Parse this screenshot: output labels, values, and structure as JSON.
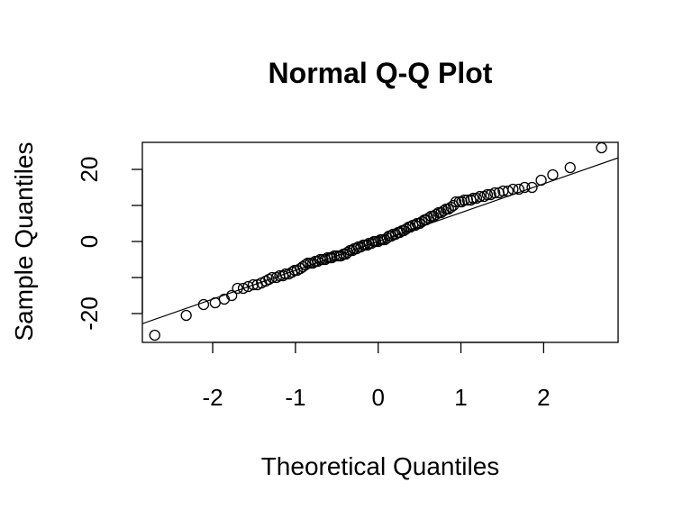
{
  "chart_data": {
    "type": "scatter",
    "title": "Normal Q-Q Plot",
    "xlabel": "Theoretical Quantiles",
    "ylabel": "Sample Quantiles",
    "xlim": [
      -2.85,
      2.9
    ],
    "ylim": [
      -28,
      27.5
    ],
    "x_ticks": [
      -2,
      -1,
      0,
      1,
      2
    ],
    "x_tick_labels": [
      "-2",
      "-1",
      "0",
      "1",
      "2"
    ],
    "y_ticks": [
      -20,
      -10,
      0,
      10,
      20
    ],
    "y_tick_labels": [
      "-20",
      "",
      "0",
      "",
      "20"
    ],
    "grid": false,
    "legend": "none",
    "reference_line": {
      "intercept": 0,
      "slope": 8.0
    },
    "points": {
      "x": [
        -2.7,
        -2.32,
        -2.11,
        -1.97,
        -1.86,
        -1.77,
        -1.7,
        -1.63,
        -1.57,
        -1.51,
        -1.46,
        -1.41,
        -1.36,
        -1.32,
        -1.28,
        -1.23,
        -1.19,
        -1.15,
        -1.12,
        -1.08,
        -1.04,
        -1.01,
        -0.98,
        -0.94,
        -0.91,
        -0.88,
        -0.85,
        -0.82,
        -0.79,
        -0.76,
        -0.73,
        -0.7,
        -0.67,
        -0.64,
        -0.61,
        -0.58,
        -0.56,
        -0.53,
        -0.5,
        -0.47,
        -0.45,
        -0.42,
        -0.39,
        -0.37,
        -0.34,
        -0.31,
        -0.29,
        -0.26,
        -0.24,
        -0.21,
        -0.18,
        -0.16,
        -0.13,
        -0.11,
        -0.08,
        -0.05,
        -0.03,
        0.0,
        0.03,
        0.05,
        0.08,
        0.11,
        0.13,
        0.16,
        0.18,
        0.21,
        0.24,
        0.26,
        0.29,
        0.31,
        0.34,
        0.37,
        0.39,
        0.42,
        0.45,
        0.47,
        0.5,
        0.53,
        0.56,
        0.58,
        0.61,
        0.64,
        0.67,
        0.7,
        0.73,
        0.76,
        0.79,
        0.82,
        0.85,
        0.88,
        0.91,
        0.94,
        0.98,
        1.01,
        1.04,
        1.08,
        1.12,
        1.15,
        1.19,
        1.23,
        1.28,
        1.32,
        1.36,
        1.41,
        1.46,
        1.51,
        1.57,
        1.63,
        1.7,
        1.77,
        1.86,
        1.97,
        2.11,
        2.32,
        2.7
      ],
      "y": [
        -26.0,
        -20.5,
        -17.5,
        -17.0,
        -16.0,
        -15.0,
        -13.0,
        -13.0,
        -12.5,
        -12.0,
        -12.0,
        -11.5,
        -11.0,
        -10.5,
        -10.0,
        -10.0,
        -9.5,
        -9.5,
        -9.0,
        -9.0,
        -8.5,
        -8.0,
        -8.0,
        -7.5,
        -7.0,
        -6.5,
        -6.0,
        -6.0,
        -6.0,
        -5.5,
        -5.5,
        -5.0,
        -5.0,
        -5.0,
        -4.5,
        -4.5,
        -4.5,
        -4.0,
        -4.0,
        -4.0,
        -4.0,
        -3.5,
        -3.5,
        -3.0,
        -2.5,
        -2.5,
        -2.0,
        -2.0,
        -1.5,
        -1.5,
        -1.0,
        -1.0,
        -1.0,
        -0.5,
        -0.5,
        0.0,
        0.0,
        0.0,
        0.5,
        0.5,
        0.5,
        1.0,
        1.5,
        1.5,
        2.0,
        2.0,
        2.5,
        2.5,
        3.0,
        3.0,
        3.5,
        4.0,
        4.0,
        4.5,
        4.5,
        5.0,
        5.0,
        5.5,
        6.0,
        6.0,
        6.5,
        7.0,
        7.0,
        7.5,
        8.0,
        8.0,
        8.5,
        9.0,
        9.0,
        9.5,
        10.0,
        11.0,
        11.0,
        11.0,
        11.5,
        11.5,
        11.5,
        12.0,
        12.0,
        12.5,
        12.5,
        13.0,
        13.0,
        13.5,
        13.5,
        14.0,
        14.0,
        14.5,
        14.5,
        15.0,
        15.0,
        17.0,
        18.5,
        20.5,
        26.0
      ]
    }
  }
}
